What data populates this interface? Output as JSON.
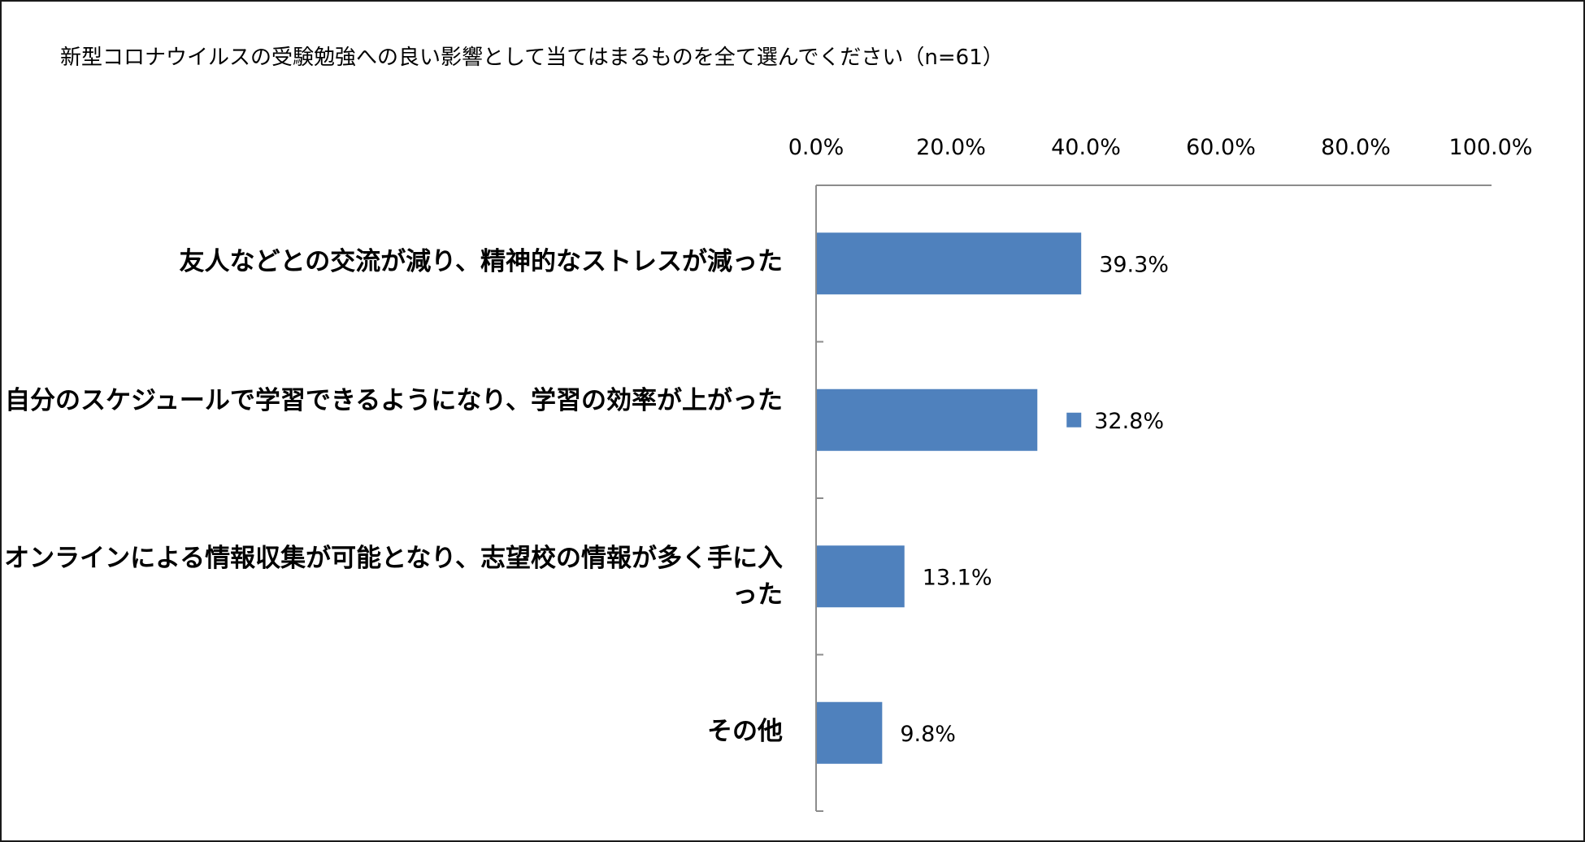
{
  "chart_data": {
    "type": "bar",
    "orientation": "horizontal",
    "title": "新型コロナウイルスの受験勉強への良い影響として当てはまるものを全て選んでください（n=61）",
    "categories": [
      "友人などとの交流が減り、精神的なストレスが減った",
      "自分のスケジュールで学習できるようになり、学習の効率が上がった",
      "オンラインによる情報収集が可能となり、志望校の情報が多く手に入った",
      "その他"
    ],
    "values": [
      39.3,
      32.8,
      13.1,
      9.8
    ],
    "value_labels": [
      "39.3%",
      "32.8%",
      "13.1%",
      "9.8%"
    ],
    "xlim": [
      0,
      100
    ],
    "x_ticks": [
      "0.0%",
      "20.0%",
      "40.0%",
      "60.0%",
      "80.0%",
      "100.0%"
    ],
    "axis_position": "top",
    "grid": false,
    "legend": "none",
    "bar_color": "#4f81bd",
    "axis_color": "#8c8c8c"
  }
}
